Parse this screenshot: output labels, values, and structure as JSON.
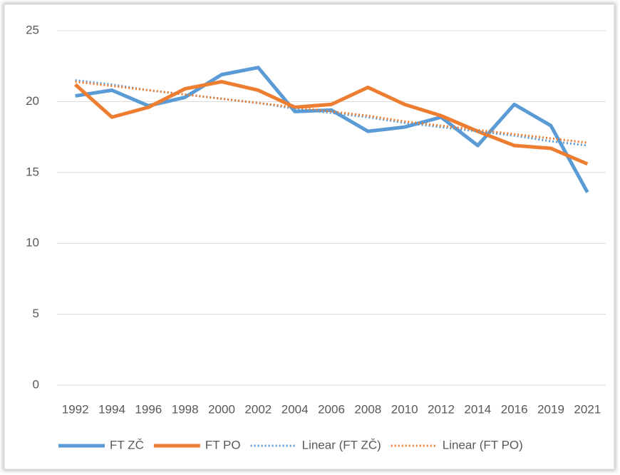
{
  "chart_data": {
    "type": "line",
    "categories": [
      "1992",
      "1994",
      "1996",
      "1998",
      "2000",
      "2002",
      "2004",
      "2006",
      "2008",
      "2010",
      "2012",
      "2014",
      "2016",
      "2019",
      "2021"
    ],
    "series": [
      {
        "name": "FT ZČ",
        "color": "#5b9bd5",
        "style": "solid",
        "values": [
          20.4,
          20.8,
          19.7,
          20.3,
          21.9,
          22.4,
          19.3,
          19.4,
          17.9,
          18.2,
          18.9,
          16.9,
          19.8,
          18.3,
          13.6
        ]
      },
      {
        "name": "FT PO",
        "color": "#ed7d31",
        "style": "solid",
        "values": [
          21.2,
          18.9,
          19.6,
          20.9,
          21.4,
          20.8,
          19.6,
          19.8,
          21.0,
          19.8,
          19.0,
          17.9,
          16.9,
          16.7,
          15.6
        ]
      },
      {
        "name": "Linear (FT ZČ)",
        "color": "#5b9bd5",
        "style": "dotted",
        "values": [
          21.5,
          21.2,
          20.8,
          20.5,
          20.2,
          19.9,
          19.5,
          19.2,
          18.9,
          18.5,
          18.2,
          17.9,
          17.6,
          17.2,
          16.9
        ]
      },
      {
        "name": "Linear (FT PO)",
        "color": "#ed7d31",
        "style": "dotted",
        "values": [
          21.4,
          21.1,
          20.8,
          20.5,
          20.2,
          19.9,
          19.6,
          19.3,
          19.0,
          18.6,
          18.3,
          18.0,
          17.7,
          17.4,
          17.1
        ]
      }
    ],
    "ylim": [
      0,
      25
    ],
    "yticks": [
      0,
      5,
      10,
      15,
      20,
      25
    ],
    "grid": true,
    "legend": "bottom"
  }
}
